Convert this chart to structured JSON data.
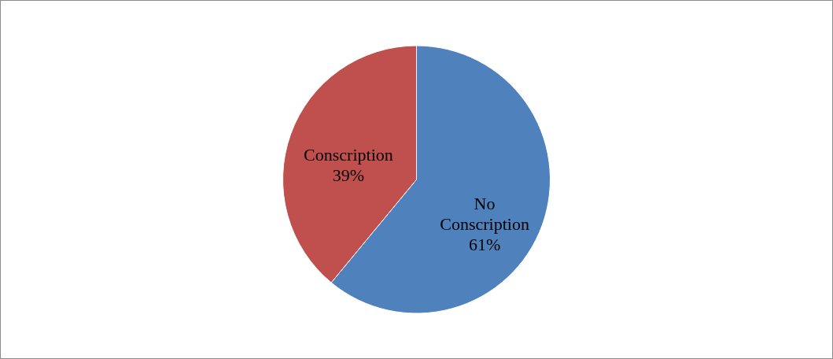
{
  "chart_data": {
    "type": "pie",
    "categories": [
      "No Conscription",
      "Conscription"
    ],
    "values": [
      61,
      39
    ],
    "colors": [
      "#4f81bd",
      "#c0504d"
    ],
    "value_labels": [
      "61%",
      "39%"
    ]
  }
}
